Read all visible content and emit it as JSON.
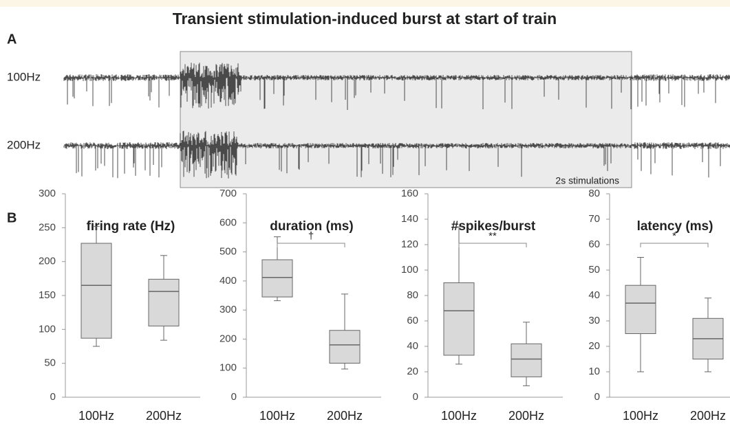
{
  "title": "Transient stimulation-induced burst at start of train",
  "panel_a": {
    "label": "A",
    "traces": [
      "100Hz",
      "200Hz"
    ],
    "annotation": "2s stimulations"
  },
  "panel_b": {
    "label": "B"
  },
  "chart_data": [
    {
      "type": "box",
      "title": "firing rate (Hz)",
      "categories": [
        "100Hz",
        "200Hz"
      ],
      "color": "#d9d9d9",
      "boxes": [
        {
          "min": 75,
          "q1": 87,
          "median": 165,
          "q3": 227,
          "max": 252
        },
        {
          "min": 84,
          "q1": 105,
          "median": 156,
          "q3": 174,
          "max": 209
        }
      ],
      "ylim": [
        0,
        300
      ],
      "yticks": [
        0,
        50,
        100,
        150,
        200,
        250,
        300
      ]
    },
    {
      "type": "box",
      "title": "duration (ms)",
      "categories": [
        "100Hz",
        "200Hz"
      ],
      "color": "#d9d9d9",
      "boxes": [
        {
          "min": 332,
          "q1": 345,
          "median": 412,
          "q3": 473,
          "max": 552
        },
        {
          "min": 97,
          "q1": 117,
          "median": 180,
          "q3": 230,
          "max": 355
        }
      ],
      "ylim": [
        0,
        700
      ],
      "yticks": [
        0,
        100,
        200,
        300,
        400,
        500,
        600,
        700
      ],
      "annotation": "†"
    },
    {
      "type": "box",
      "title": "#spikes/burst",
      "categories": [
        "100Hz",
        "200Hz"
      ],
      "color": "#d9d9d9",
      "boxes": [
        {
          "min": 26,
          "q1": 33,
          "median": 68,
          "q3": 90,
          "max": 134
        },
        {
          "min": 9,
          "q1": 16,
          "median": 30,
          "q3": 42,
          "max": 59
        }
      ],
      "ylim": [
        0,
        160
      ],
      "yticks": [
        0,
        20,
        40,
        60,
        80,
        100,
        120,
        140,
        160
      ],
      "annotation": "**"
    },
    {
      "type": "box",
      "title": "latency (ms)",
      "categories": [
        "100Hz",
        "200Hz"
      ],
      "color": "#d9d9d9",
      "boxes": [
        {
          "min": 10,
          "q1": 25,
          "median": 37,
          "q3": 44,
          "max": 55
        },
        {
          "min": 10,
          "q1": 15,
          "median": 23,
          "q3": 31,
          "max": 39
        }
      ],
      "ylim": [
        0,
        80
      ],
      "yticks": [
        0,
        10,
        20,
        30,
        40,
        50,
        60,
        70,
        80
      ],
      "annotation": "*"
    }
  ]
}
